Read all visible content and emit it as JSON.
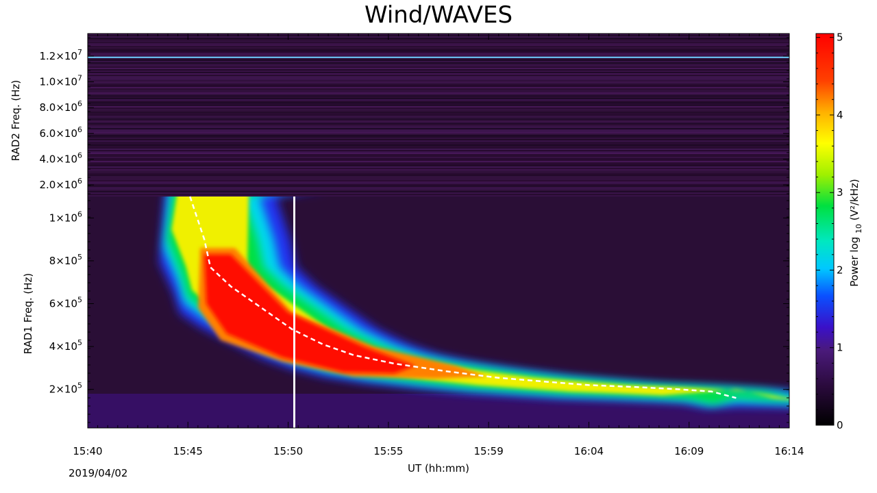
{
  "title": "Wind/WAVES",
  "date": "2019/04/02",
  "chart_data": {
    "type": "heatmap",
    "title": "Wind/WAVES",
    "xlabel": "UT (hh:mm)",
    "x_tick_labels": [
      "15:40",
      "15:45",
      "15:50",
      "15:55",
      "15:59",
      "16:04",
      "16:09",
      "16:14"
    ],
    "x_range_minutes": [
      0,
      34.3
    ],
    "panels": [
      {
        "name": "RAD2",
        "ylabel": "RAD2 Freq. (Hz)",
        "ylim": [
          1100000.0,
          13750000.0
        ],
        "y_ticks": [
          {
            "value": 2000000.0,
            "mant": "2.0×10",
            "exp": "6"
          },
          {
            "value": 4000000.0,
            "mant": "4.0×10",
            "exp": "6"
          },
          {
            "value": 6000000.0,
            "mant": "6.0×10",
            "exp": "6"
          },
          {
            "value": 8000000.0,
            "mant": "8.0×10",
            "exp": "6"
          },
          {
            "value": 10000000.0,
            "mant": "1.0×10",
            "exp": "7"
          },
          {
            "value": 12000000.0,
            "mant": "1.2×10",
            "exp": "7"
          }
        ],
        "interference_line_hz": 11900000.0
      },
      {
        "name": "RAD1",
        "ylabel": "RAD1 Freq. (Hz)",
        "ylim": [
          20000,
          1100000.0
        ],
        "y_ticks": [
          {
            "value": 200000.0,
            "mant": "2×10",
            "exp": "5"
          },
          {
            "value": 400000.0,
            "mant": "4×10",
            "exp": "5"
          },
          {
            "value": 600000.0,
            "mant": "6×10",
            "exp": "5"
          },
          {
            "value": 800000.0,
            "mant": "8×10",
            "exp": "5"
          },
          {
            "value": 1000000.0,
            "mant": "1×10",
            "exp": "6"
          }
        ]
      }
    ],
    "colorbar": {
      "label": "Power log",
      "label_sub": "10",
      "label_unit": "(V²/kHz)",
      "range": [
        0,
        5.05
      ],
      "ticks": [
        "0",
        "1",
        "2",
        "3",
        "4",
        "5"
      ]
    },
    "burst_track": {
      "name": "type III burst fit",
      "style": "dashed white",
      "points": [
        {
          "t_min": 5.0,
          "f_hz": 1100000.0
        },
        {
          "t_min": 5.7,
          "f_hz": 900000.0
        },
        {
          "t_min": 6.0,
          "f_hz": 770000.0
        },
        {
          "t_min": 7.0,
          "f_hz": 680000.0
        },
        {
          "t_min": 8.5,
          "f_hz": 580000.0
        },
        {
          "t_min": 10.0,
          "f_hz": 480000.0
        },
        {
          "t_min": 11.5,
          "f_hz": 410000.0
        },
        {
          "t_min": 13.0,
          "f_hz": 360000.0
        },
        {
          "t_min": 15.0,
          "f_hz": 320000.0
        },
        {
          "t_min": 17.5,
          "f_hz": 285000.0
        },
        {
          "t_min": 20.0,
          "f_hz": 255000.0
        },
        {
          "t_min": 22.5,
          "f_hz": 235000.0
        },
        {
          "t_min": 24.5,
          "f_hz": 220000.0
        },
        {
          "t_min": 27.0,
          "f_hz": 210000.0
        },
        {
          "t_min": 29.0,
          "f_hz": 200000.0
        },
        {
          "t_min": 30.5,
          "f_hz": 190000.0
        },
        {
          "t_min": 31.7,
          "f_hz": 160000.0
        }
      ]
    },
    "marker_line": {
      "t_min": 10.1,
      "f_top_hz": 1100000.0,
      "color": "#ffffff"
    }
  }
}
